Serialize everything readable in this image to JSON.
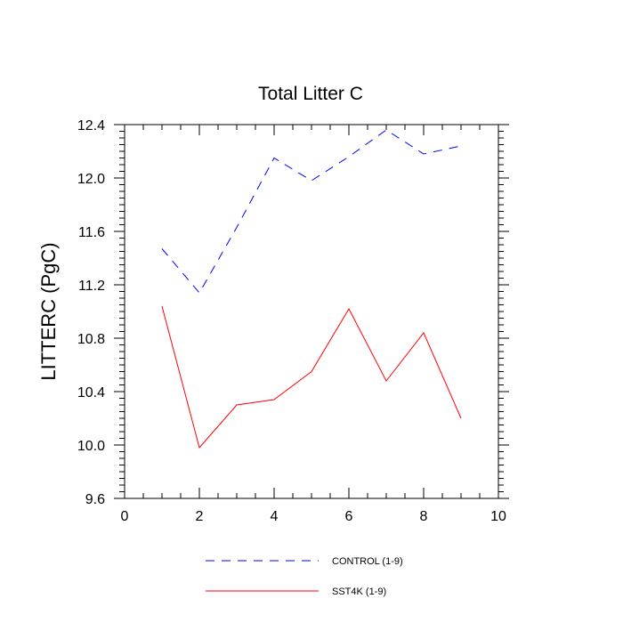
{
  "chart_data": {
    "type": "line",
    "title": "Total Litter C",
    "xlabel": "",
    "ylabel": "LITTERC  (PgC)",
    "xlim": [
      0,
      10
    ],
    "ylim": [
      9.6,
      12.4
    ],
    "x_ticks": [
      "0",
      "2",
      "4",
      "6",
      "8",
      "10"
    ],
    "y_ticks": [
      "9.6",
      "10.0",
      "10.4",
      "10.8",
      "11.2",
      "11.6",
      "12.0",
      "12.4"
    ],
    "x": [
      1,
      2,
      3,
      4,
      5,
      6,
      7,
      8,
      9
    ],
    "grid": false,
    "legend_position": "bottom",
    "series": [
      {
        "name": "CONTROL (1-9)",
        "color": "#0000ff",
        "dash": "dashed",
        "values": [
          11.47,
          11.14,
          11.63,
          12.15,
          11.98,
          12.16,
          12.36,
          12.18,
          12.24
        ]
      },
      {
        "name": "SST4K (1-9)",
        "color": "#ff0000",
        "dash": "solid",
        "values": [
          11.04,
          9.98,
          10.3,
          10.34,
          10.55,
          11.02,
          10.48,
          10.84,
          10.2
        ]
      }
    ]
  }
}
